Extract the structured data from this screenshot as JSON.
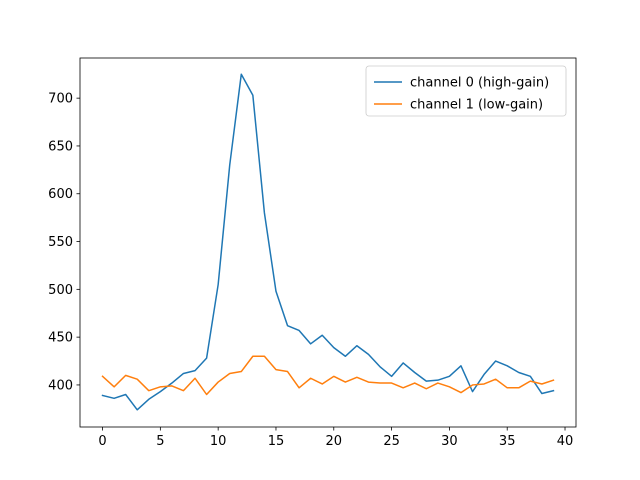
{
  "chart_data": {
    "type": "line",
    "title": "",
    "xlabel": "",
    "ylabel": "",
    "xlim": [
      -1.95,
      40.95
    ],
    "ylim": [
      356,
      742
    ],
    "xticks": [
      0,
      5,
      10,
      15,
      20,
      25,
      30,
      35,
      40
    ],
    "yticks": [
      400,
      450,
      500,
      550,
      600,
      650,
      700
    ],
    "grid": false,
    "legend_position": "top-right",
    "x": [
      0,
      1,
      2,
      3,
      4,
      5,
      6,
      7,
      8,
      9,
      10,
      11,
      12,
      13,
      14,
      15,
      16,
      17,
      18,
      19,
      20,
      21,
      22,
      23,
      24,
      25,
      26,
      27,
      28,
      29,
      30,
      31,
      32,
      33,
      34,
      35,
      36,
      37,
      38,
      39
    ],
    "series": [
      {
        "name": "channel 0 (high-gain)",
        "color": "#1f77b4",
        "values": [
          389,
          386,
          390,
          374,
          385,
          393,
          402,
          412,
          415,
          428,
          505,
          630,
          725,
          703,
          580,
          498,
          462,
          457,
          443,
          452,
          439,
          430,
          441,
          432,
          419,
          409,
          423,
          413,
          404,
          405,
          409,
          420,
          393,
          411,
          425,
          420,
          413,
          409,
          391,
          394
        ]
      },
      {
        "name": "channel 1 (low-gain)",
        "color": "#ff7f0e",
        "values": [
          409,
          398,
          410,
          406,
          394,
          398,
          399,
          394,
          407,
          390,
          403,
          412,
          414,
          430,
          430,
          416,
          414,
          397,
          407,
          401,
          409,
          403,
          408,
          403,
          402,
          402,
          397,
          402,
          396,
          402,
          398,
          392,
          400,
          401,
          406,
          397,
          397,
          404,
          401,
          405
        ]
      }
    ]
  }
}
